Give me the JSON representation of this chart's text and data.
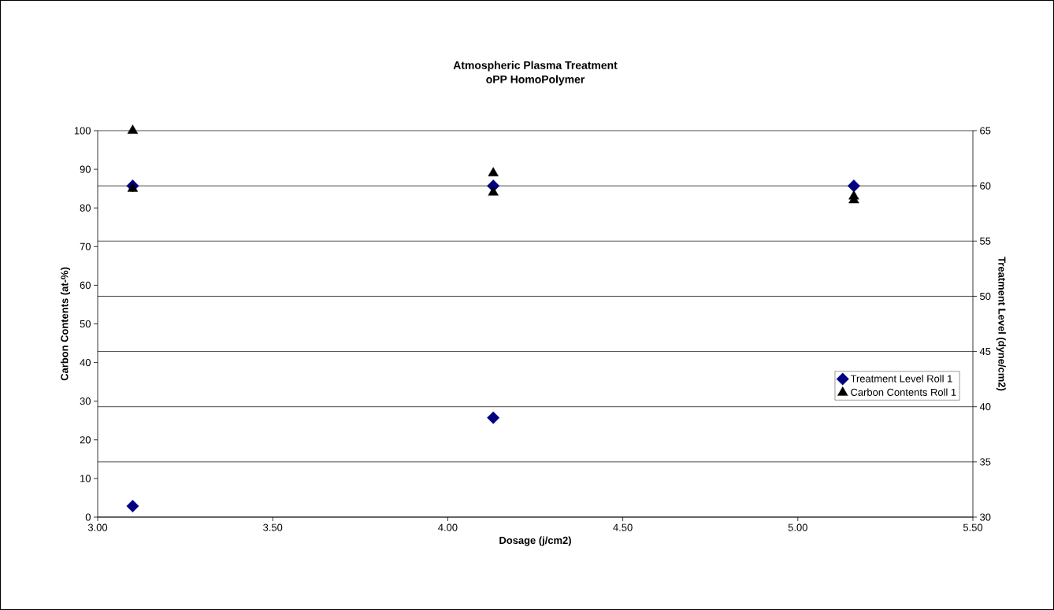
{
  "chart_data": {
    "type": "scatter",
    "title": "Atmospheric Plasma Treatment",
    "subtitle": "oPP HomoPolymer",
    "xlabel": "Dosage (j/cm2)",
    "ylabel": "Carbon Contents (at-%)",
    "y2label": "Treatment Level (dyne/cm2)",
    "series": [
      {
        "name": "Treatment Level Roll 1",
        "color": "#000080",
        "marker": "diamond",
        "axis": "y2",
        "x": [
          3.1,
          4.13,
          3.1,
          4.13,
          5.16
        ],
        "values": [
          31,
          39,
          60,
          60,
          60
        ]
      },
      {
        "name": "Carbon Contents Roll 1",
        "color": "#000000",
        "marker": "triangle",
        "x": [
          3.1,
          3.1,
          4.13,
          4.13,
          5.16,
          5.16
        ],
        "values": [
          100,
          85,
          89,
          84,
          83,
          82
        ]
      }
    ],
    "xlim": [
      3.0,
      5.5
    ],
    "xticks": [
      {
        "value": 3.0,
        "label": "3.00"
      },
      {
        "value": 3.5,
        "label": "3.50"
      },
      {
        "value": 4.0,
        "label": "4.00"
      },
      {
        "value": 4.5,
        "label": "4.50"
      },
      {
        "value": 5.0,
        "label": "5.00"
      },
      {
        "value": 5.5,
        "label": "5.50"
      }
    ],
    "ylim": [
      0,
      100
    ],
    "yticks": [
      0,
      10,
      20,
      30,
      40,
      50,
      60,
      70,
      80,
      90,
      100
    ],
    "y2lim": [
      30,
      65
    ],
    "y2ticks": [
      30,
      35,
      40,
      45,
      50,
      55,
      60,
      65
    ],
    "grid": "y",
    "legend": "right"
  }
}
